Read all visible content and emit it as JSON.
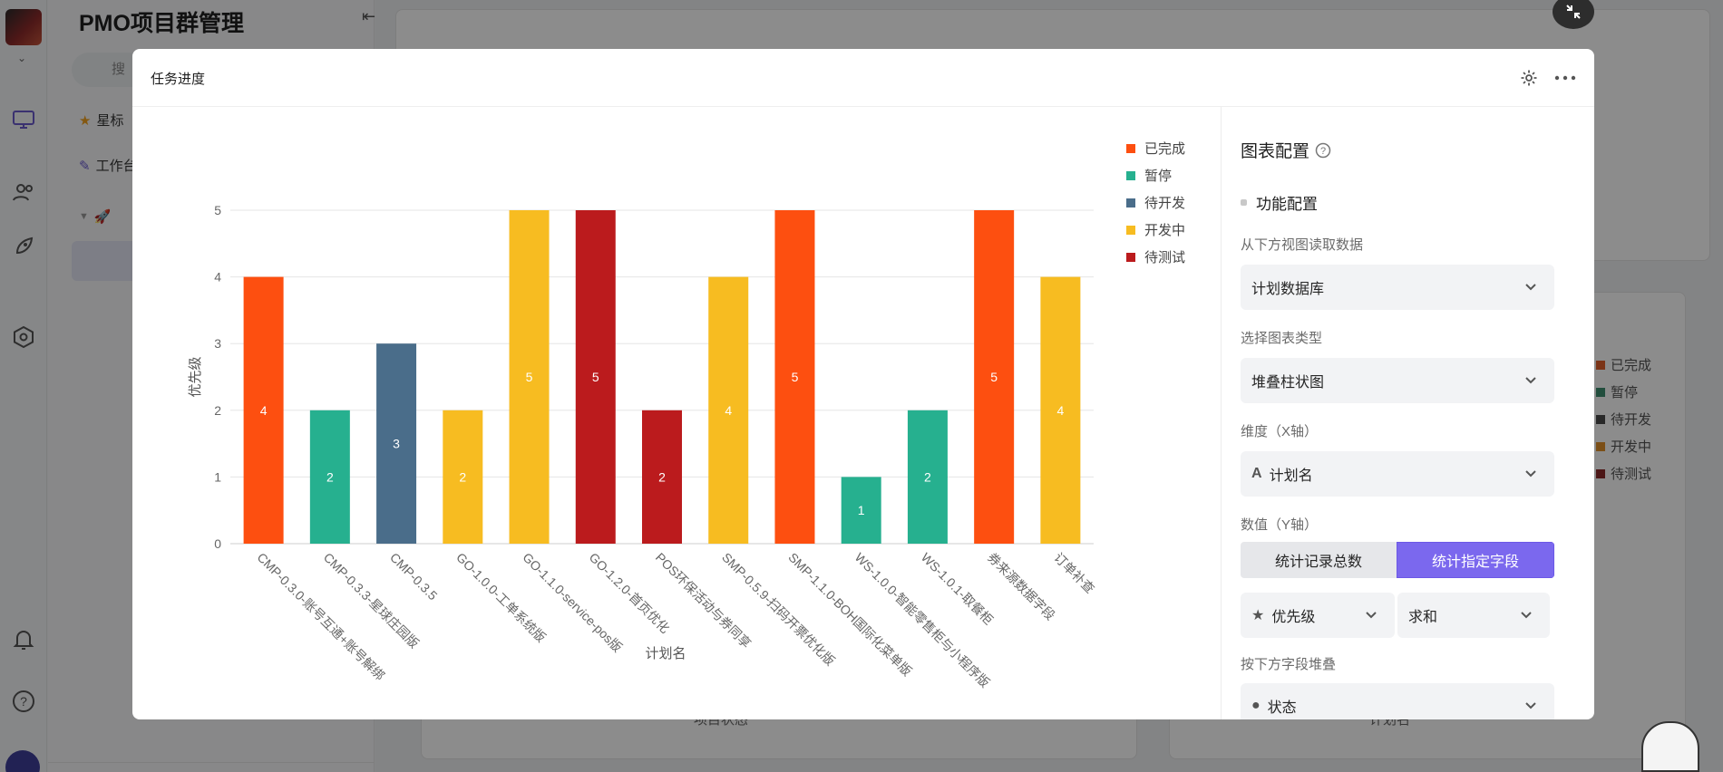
{
  "app": {
    "workspace_title": "PMO项目群管理",
    "search_placeholder": "搜",
    "sidebar_items": [
      "星标",
      "工作台"
    ],
    "background_legend": [
      {
        "label": "已完成",
        "color": "#e0602b"
      },
      {
        "label": "暂停",
        "color": "#3f8f6f"
      },
      {
        "label": "待开发",
        "color": "#4a4a4a"
      },
      {
        "label": "开发中",
        "color": "#e0902b"
      },
      {
        "label": "待测试",
        "color": "#8a2a2a"
      }
    ],
    "background_axis_labels": [
      "项目状态",
      "计划名"
    ]
  },
  "modal": {
    "title": "任务进度"
  },
  "chart_data": {
    "type": "bar",
    "stacked": true,
    "xlabel": "计划名",
    "ylabel": "优先级",
    "ylim": [
      0,
      5
    ],
    "yticks": [
      0,
      1,
      2,
      3,
      4,
      5
    ],
    "grid": true,
    "legend_position": "top-right",
    "legend": [
      {
        "name": "已完成",
        "color": "#fd4f10"
      },
      {
        "name": "暂停",
        "color": "#26b08f"
      },
      {
        "name": "待开发",
        "color": "#4a6d8a"
      },
      {
        "name": "开发中",
        "color": "#f7bc21"
      },
      {
        "name": "待测试",
        "color": "#bb1b1d"
      }
    ],
    "bars": [
      {
        "category": "CMP-0.3.0-账号互通+账号解绑",
        "series": "已完成",
        "value": 4
      },
      {
        "category": "CMP-0.3.3-星球庄园版",
        "series": "暂停",
        "value": 2
      },
      {
        "category": "CMP-0.3.5",
        "series": "待开发",
        "value": 3
      },
      {
        "category": "GO-1.0.0-工单系统版",
        "series": "开发中",
        "value": 2
      },
      {
        "category": "GO-1.1.0-service-pos版",
        "series": "开发中",
        "value": 5
      },
      {
        "category": "GO-1.2.0-首页优化",
        "series": "待测试",
        "value": 5
      },
      {
        "category": "POS环保活动与券同享",
        "series": "待测试",
        "value": 2
      },
      {
        "category": "SMP-0.5.9-扫码开票优化版",
        "series": "开发中",
        "value": 4
      },
      {
        "category": "SMP-1.1.0-BOH国际化菜单版",
        "series": "已完成",
        "value": 5
      },
      {
        "category": "WS-1.0.0-智能零售柜与小程序版",
        "series": "暂停",
        "value": 1
      },
      {
        "category": "WS-1.0.1-取餐柜",
        "series": "暂停",
        "value": 2
      },
      {
        "category": "券来源数据字段",
        "series": "已完成",
        "value": 5
      },
      {
        "category": "订单补查",
        "series": "开发中",
        "value": 4
      }
    ]
  },
  "config": {
    "title": "图表配置",
    "section": "功能配置",
    "data_source_label": "从下方视图读取数据",
    "data_source_value": "计划数据库",
    "chart_type_label": "选择图表类型",
    "chart_type_value": "堆叠柱状图",
    "dimension_label": "维度（X轴）",
    "dimension_value": "计划名",
    "value_label": "数值（Y轴）",
    "seg_count": "统计记录总数",
    "seg_field": "统计指定字段",
    "field_value": "优先级",
    "agg_value": "求和",
    "stack_label": "按下方字段堆叠",
    "stack_value": "状态"
  }
}
